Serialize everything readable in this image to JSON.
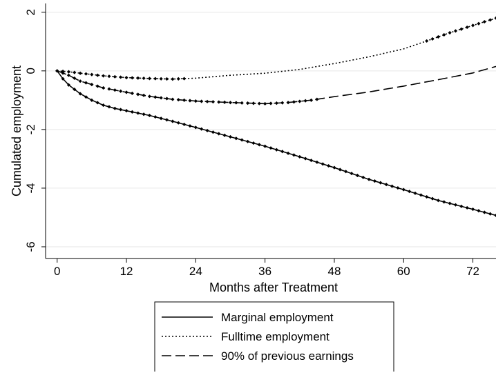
{
  "chart_data": {
    "type": "line",
    "title": "",
    "xlabel": "Months after Treatment",
    "ylabel": "Cumulated employment",
    "xlim": [
      -2,
      76
    ],
    "ylim": [
      -6.4,
      2.3
    ],
    "xticks": [
      0,
      12,
      24,
      36,
      48,
      60,
      72
    ],
    "yticks": [
      2,
      0,
      -2,
      -4,
      -6
    ],
    "grid": "horizontal",
    "legend_position": "bottom",
    "series": [
      {
        "name": "Marginal employment",
        "style": "solid",
        "color": "#000000",
        "x": [
          0,
          1,
          2,
          4,
          6,
          8,
          10,
          12,
          16,
          20,
          24,
          30,
          36,
          42,
          48,
          54,
          60,
          66,
          72,
          76
        ],
        "values": [
          0,
          -0.27,
          -0.48,
          -0.78,
          -1.0,
          -1.17,
          -1.28,
          -1.36,
          -1.52,
          -1.72,
          -1.93,
          -2.25,
          -2.57,
          -2.93,
          -3.3,
          -3.7,
          -4.05,
          -4.42,
          -4.72,
          -4.93
        ],
        "markers_upto": 76
      },
      {
        "name": "Fulltime employment",
        "style": "dotted",
        "color": "#000000",
        "x": [
          0,
          2,
          4,
          8,
          12,
          16,
          20,
          24,
          30,
          36,
          42,
          48,
          54,
          60,
          64,
          68,
          72,
          76
        ],
        "values": [
          0,
          -0.03,
          -0.08,
          -0.17,
          -0.23,
          -0.26,
          -0.28,
          -0.25,
          -0.15,
          -0.08,
          0.05,
          0.25,
          0.48,
          0.75,
          1.02,
          1.3,
          1.55,
          1.8
        ],
        "markers_upto": 22,
        "markers_from": 64
      },
      {
        "name": "90% of previous earnings",
        "style": "dashed",
        "color": "#000000",
        "x": [
          0,
          2,
          4,
          8,
          12,
          16,
          20,
          24,
          30,
          36,
          40,
          44,
          48,
          54,
          60,
          66,
          72,
          76
        ],
        "values": [
          0,
          -0.15,
          -0.35,
          -0.58,
          -0.73,
          -0.87,
          -0.97,
          -1.03,
          -1.08,
          -1.12,
          -1.08,
          -1.0,
          -0.88,
          -0.72,
          -0.52,
          -0.3,
          -0.07,
          0.15
        ],
        "markers_upto": 45
      }
    ]
  }
}
